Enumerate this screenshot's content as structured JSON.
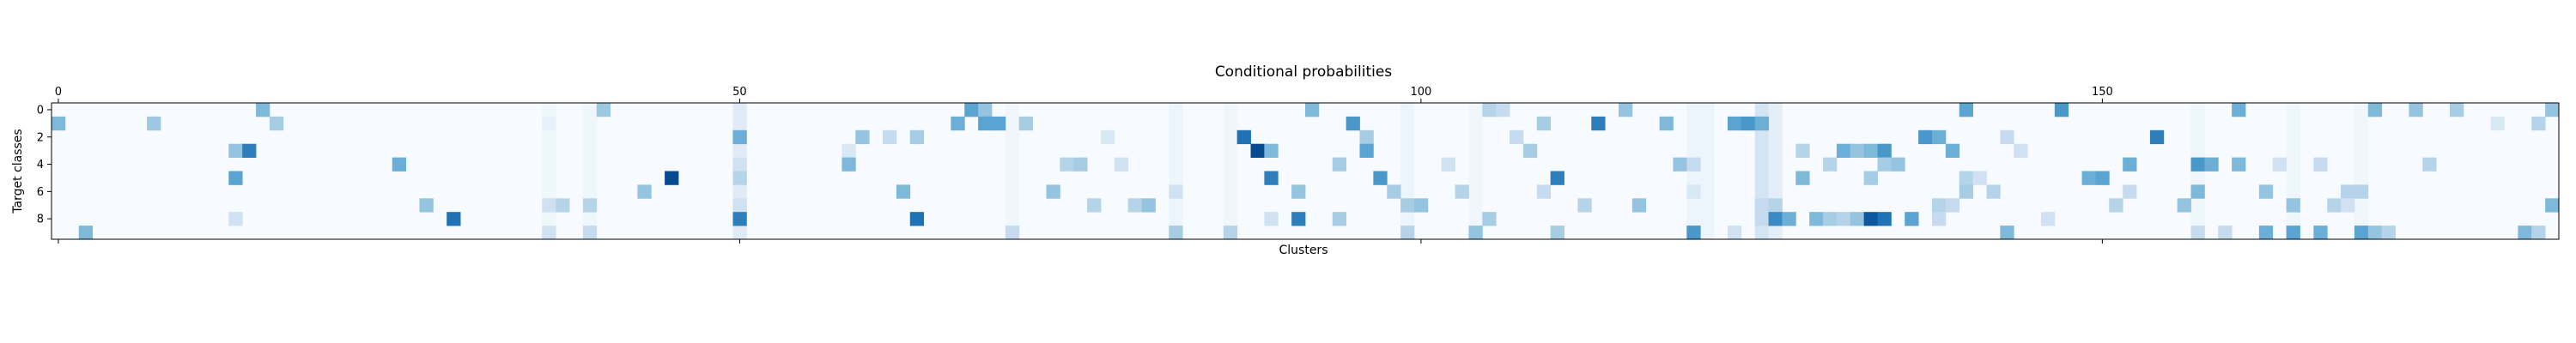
{
  "chart_data": {
    "type": "heatmap",
    "title": "Conditional probabilities",
    "xlabel": "Clusters",
    "ylabel": "Target classes",
    "x_range": [
      0,
      184
    ],
    "y_range": [
      0,
      9
    ],
    "x_ticks": [
      0,
      50,
      100,
      150
    ],
    "y_ticks": [
      0,
      2,
      4,
      6,
      8
    ],
    "x_tick_position": "top",
    "colormap": "Blues",
    "vmin": 0,
    "vmax": 1,
    "background_color": "#f7fbff",
    "grid": false,
    "cells": [
      [
        15,
        0,
        0.45
      ],
      [
        40,
        0,
        0.38
      ],
      [
        67,
        0,
        0.55
      ],
      [
        68,
        0,
        0.4
      ],
      [
        92,
        0,
        0.45
      ],
      [
        105,
        0,
        0.3
      ],
      [
        106,
        0,
        0.25
      ],
      [
        115,
        0,
        0.4
      ],
      [
        140,
        0,
        0.55
      ],
      [
        147,
        0,
        0.6
      ],
      [
        160,
        0,
        0.5
      ],
      [
        170,
        0,
        0.45
      ],
      [
        173,
        0,
        0.4
      ],
      [
        176,
        0,
        0.35
      ],
      [
        183,
        0,
        0.4
      ],
      [
        0,
        1,
        0.45
      ],
      [
        7,
        1,
        0.38
      ],
      [
        16,
        1,
        0.35
      ],
      [
        36,
        1,
        0.08
      ],
      [
        66,
        1,
        0.5
      ],
      [
        68,
        1,
        0.55
      ],
      [
        69,
        1,
        0.55
      ],
      [
        71,
        1,
        0.35
      ],
      [
        95,
        1,
        0.6
      ],
      [
        109,
        1,
        0.35
      ],
      [
        113,
        1,
        0.7
      ],
      [
        118,
        1,
        0.45
      ],
      [
        123,
        1,
        0.55
      ],
      [
        124,
        1,
        0.6
      ],
      [
        125,
        1,
        0.5
      ],
      [
        179,
        1,
        0.15
      ],
      [
        182,
        1,
        0.3
      ],
      [
        50,
        2,
        0.5
      ],
      [
        59,
        2,
        0.4
      ],
      [
        61,
        2,
        0.25
      ],
      [
        63,
        2,
        0.35
      ],
      [
        77,
        2,
        0.15
      ],
      [
        87,
        2,
        0.75
      ],
      [
        96,
        2,
        0.35
      ],
      [
        107,
        2,
        0.25
      ],
      [
        137,
        2,
        0.6
      ],
      [
        138,
        2,
        0.5
      ],
      [
        143,
        2,
        0.25
      ],
      [
        154,
        2,
        0.7
      ],
      [
        13,
        3,
        0.4
      ],
      [
        14,
        3,
        0.7
      ],
      [
        58,
        3,
        0.15
      ],
      [
        88,
        3,
        0.9
      ],
      [
        89,
        3,
        0.45
      ],
      [
        96,
        3,
        0.55
      ],
      [
        108,
        3,
        0.35
      ],
      [
        128,
        3,
        0.3
      ],
      [
        131,
        3,
        0.5
      ],
      [
        132,
        3,
        0.4
      ],
      [
        133,
        3,
        0.45
      ],
      [
        134,
        3,
        0.6
      ],
      [
        139,
        3,
        0.5
      ],
      [
        144,
        3,
        0.2
      ],
      [
        25,
        4,
        0.5
      ],
      [
        50,
        4,
        0.2
      ],
      [
        58,
        4,
        0.45
      ],
      [
        74,
        4,
        0.3
      ],
      [
        75,
        4,
        0.35
      ],
      [
        78,
        4,
        0.2
      ],
      [
        94,
        4,
        0.35
      ],
      [
        102,
        4,
        0.2
      ],
      [
        119,
        4,
        0.4
      ],
      [
        120,
        4,
        0.25
      ],
      [
        130,
        4,
        0.3
      ],
      [
        134,
        4,
        0.35
      ],
      [
        135,
        4,
        0.4
      ],
      [
        152,
        4,
        0.5
      ],
      [
        157,
        4,
        0.6
      ],
      [
        158,
        4,
        0.5
      ],
      [
        160,
        4,
        0.45
      ],
      [
        163,
        4,
        0.2
      ],
      [
        166,
        4,
        0.25
      ],
      [
        174,
        4,
        0.3
      ],
      [
        13,
        5,
        0.55
      ],
      [
        45,
        5,
        0.9
      ],
      [
        50,
        5,
        0.3
      ],
      [
        89,
        5,
        0.7
      ],
      [
        97,
        5,
        0.6
      ],
      [
        110,
        5,
        0.7
      ],
      [
        128,
        5,
        0.45
      ],
      [
        133,
        5,
        0.35
      ],
      [
        140,
        5,
        0.3
      ],
      [
        141,
        5,
        0.2
      ],
      [
        149,
        5,
        0.5
      ],
      [
        150,
        5,
        0.55
      ],
      [
        43,
        6,
        0.4
      ],
      [
        62,
        6,
        0.45
      ],
      [
        73,
        6,
        0.4
      ],
      [
        82,
        6,
        0.2
      ],
      [
        91,
        6,
        0.4
      ],
      [
        98,
        6,
        0.35
      ],
      [
        103,
        6,
        0.3
      ],
      [
        109,
        6,
        0.25
      ],
      [
        120,
        6,
        0.15
      ],
      [
        140,
        6,
        0.35
      ],
      [
        142,
        6,
        0.3
      ],
      [
        152,
        6,
        0.25
      ],
      [
        157,
        6,
        0.45
      ],
      [
        162,
        6,
        0.4
      ],
      [
        168,
        6,
        0.3
      ],
      [
        169,
        6,
        0.3
      ],
      [
        27,
        7,
        0.4
      ],
      [
        36,
        7,
        0.2
      ],
      [
        37,
        7,
        0.3
      ],
      [
        39,
        7,
        0.3
      ],
      [
        50,
        7,
        0.2
      ],
      [
        76,
        7,
        0.3
      ],
      [
        79,
        7,
        0.3
      ],
      [
        80,
        7,
        0.4
      ],
      [
        99,
        7,
        0.35
      ],
      [
        100,
        7,
        0.4
      ],
      [
        112,
        7,
        0.3
      ],
      [
        116,
        7,
        0.4
      ],
      [
        125,
        7,
        0.25
      ],
      [
        126,
        7,
        0.3
      ],
      [
        138,
        7,
        0.3
      ],
      [
        139,
        7,
        0.25
      ],
      [
        151,
        7,
        0.3
      ],
      [
        156,
        7,
        0.4
      ],
      [
        164,
        7,
        0.4
      ],
      [
        167,
        7,
        0.3
      ],
      [
        168,
        7,
        0.2
      ],
      [
        183,
        7,
        0.45
      ],
      [
        13,
        8,
        0.2
      ],
      [
        29,
        8,
        0.75
      ],
      [
        50,
        8,
        0.7
      ],
      [
        63,
        8,
        0.75
      ],
      [
        89,
        8,
        0.2
      ],
      [
        91,
        8,
        0.7
      ],
      [
        94,
        8,
        0.35
      ],
      [
        105,
        8,
        0.35
      ],
      [
        125,
        8,
        0.25
      ],
      [
        126,
        8,
        0.65
      ],
      [
        127,
        8,
        0.5
      ],
      [
        129,
        8,
        0.45
      ],
      [
        130,
        8,
        0.35
      ],
      [
        131,
        8,
        0.3
      ],
      [
        132,
        8,
        0.4
      ],
      [
        133,
        8,
        0.85
      ],
      [
        134,
        8,
        0.75
      ],
      [
        136,
        8,
        0.55
      ],
      [
        138,
        8,
        0.25
      ],
      [
        146,
        8,
        0.2
      ],
      [
        2,
        9,
        0.45
      ],
      [
        36,
        9,
        0.2
      ],
      [
        39,
        9,
        0.25
      ],
      [
        70,
        9,
        0.25
      ],
      [
        82,
        9,
        0.35
      ],
      [
        86,
        9,
        0.3
      ],
      [
        99,
        9,
        0.3
      ],
      [
        104,
        9,
        0.4
      ],
      [
        110,
        9,
        0.35
      ],
      [
        120,
        9,
        0.6
      ],
      [
        123,
        9,
        0.2
      ],
      [
        143,
        9,
        0.45
      ],
      [
        157,
        9,
        0.25
      ],
      [
        159,
        9,
        0.25
      ],
      [
        162,
        9,
        0.5
      ],
      [
        164,
        9,
        0.55
      ],
      [
        166,
        9,
        0.5
      ],
      [
        169,
        9,
        0.55
      ],
      [
        170,
        9,
        0.4
      ],
      [
        171,
        9,
        0.3
      ],
      [
        181,
        9,
        0.45
      ],
      [
        182,
        9,
        0.3
      ]
    ],
    "column_baseline": [
      [
        50,
        0.12
      ],
      [
        125,
        0.18
      ],
      [
        126,
        0.1
      ],
      [
        120,
        0.05
      ],
      [
        121,
        0.05
      ],
      [
        36,
        0.04
      ],
      [
        39,
        0.04
      ],
      [
        70,
        0.04
      ],
      [
        82,
        0.05
      ],
      [
        86,
        0.04
      ],
      [
        99,
        0.05
      ],
      [
        104,
        0.04
      ],
      [
        157,
        0.04
      ],
      [
        164,
        0.04
      ],
      [
        169,
        0.04
      ]
    ]
  }
}
